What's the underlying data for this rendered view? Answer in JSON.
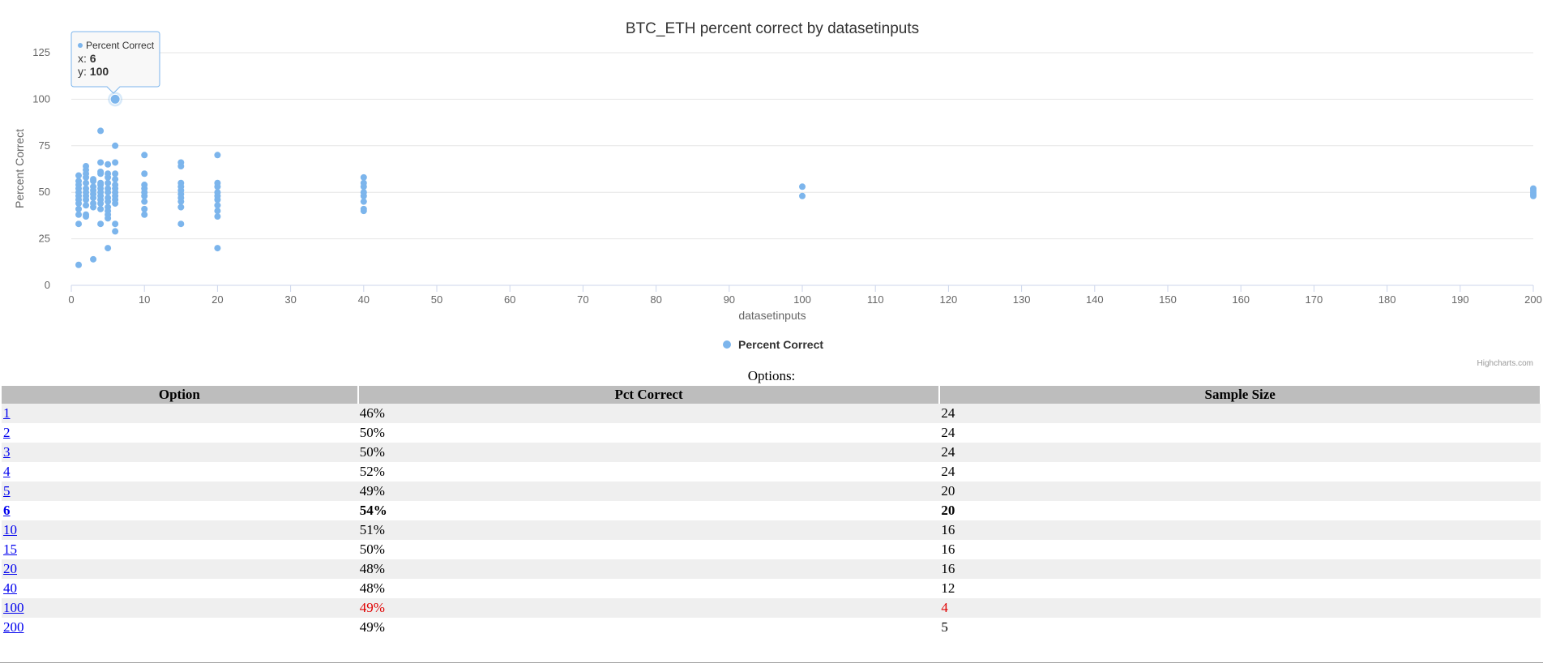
{
  "chart_data": {
    "type": "scatter",
    "title": "BTC_ETH percent correct by datasetinputs",
    "xlabel": "datasetinputs",
    "ylabel": "Percent Correct",
    "xlim": [
      0,
      200
    ],
    "ylim": [
      0,
      125
    ],
    "x_ticks": [
      0,
      10,
      20,
      30,
      40,
      50,
      60,
      70,
      80,
      90,
      100,
      110,
      120,
      130,
      140,
      150,
      160,
      170,
      180,
      190,
      200
    ],
    "y_ticks": [
      0,
      25,
      50,
      75,
      100,
      125
    ],
    "grid": "horizontal",
    "legend_position": "bottom-center",
    "series_color": "#7cb5ec",
    "series": [
      {
        "name": "Percent Correct",
        "points": [
          [
            1,
            11
          ],
          [
            1,
            33
          ],
          [
            1,
            38
          ],
          [
            1,
            41
          ],
          [
            1,
            44
          ],
          [
            1,
            46
          ],
          [
            1,
            48
          ],
          [
            1,
            50
          ],
          [
            1,
            52
          ],
          [
            1,
            54
          ],
          [
            1,
            56
          ],
          [
            1,
            59
          ],
          [
            2,
            37
          ],
          [
            2,
            38
          ],
          [
            2,
            43
          ],
          [
            2,
            46
          ],
          [
            2,
            48
          ],
          [
            2,
            50
          ],
          [
            2,
            52
          ],
          [
            2,
            55
          ],
          [
            2,
            58
          ],
          [
            2,
            60
          ],
          [
            2,
            62
          ],
          [
            2,
            64
          ],
          [
            3,
            14
          ],
          [
            3,
            42
          ],
          [
            3,
            44
          ],
          [
            3,
            47
          ],
          [
            3,
            49
          ],
          [
            3,
            51
          ],
          [
            3,
            53
          ],
          [
            3,
            56
          ],
          [
            3,
            57
          ],
          [
            4,
            33
          ],
          [
            4,
            41
          ],
          [
            4,
            44
          ],
          [
            4,
            46
          ],
          [
            4,
            48
          ],
          [
            4,
            50
          ],
          [
            4,
            52
          ],
          [
            4,
            54
          ],
          [
            4,
            55
          ],
          [
            4,
            60
          ],
          [
            4,
            61
          ],
          [
            4,
            66
          ],
          [
            4,
            83
          ],
          [
            5,
            20
          ],
          [
            5,
            36
          ],
          [
            5,
            38
          ],
          [
            5,
            40
          ],
          [
            5,
            42
          ],
          [
            5,
            45
          ],
          [
            5,
            47
          ],
          [
            5,
            50
          ],
          [
            5,
            52
          ],
          [
            5,
            55
          ],
          [
            5,
            58
          ],
          [
            5,
            60
          ],
          [
            5,
            65
          ],
          [
            6,
            29
          ],
          [
            6,
            33
          ],
          [
            6,
            44
          ],
          [
            6,
            46
          ],
          [
            6,
            48
          ],
          [
            6,
            50
          ],
          [
            6,
            52
          ],
          [
            6,
            54
          ],
          [
            6,
            57
          ],
          [
            6,
            60
          ],
          [
            6,
            66
          ],
          [
            6,
            75
          ],
          [
            6,
            100
          ],
          [
            10,
            38
          ],
          [
            10,
            41
          ],
          [
            10,
            45
          ],
          [
            10,
            48
          ],
          [
            10,
            50
          ],
          [
            10,
            52
          ],
          [
            10,
            54
          ],
          [
            10,
            60
          ],
          [
            10,
            70
          ],
          [
            15,
            33
          ],
          [
            15,
            42
          ],
          [
            15,
            45
          ],
          [
            15,
            47
          ],
          [
            15,
            49
          ],
          [
            15,
            51
          ],
          [
            15,
            53
          ],
          [
            15,
            55
          ],
          [
            15,
            64
          ],
          [
            15,
            66
          ],
          [
            20,
            20
          ],
          [
            20,
            37
          ],
          [
            20,
            40
          ],
          [
            20,
            43
          ],
          [
            20,
            46
          ],
          [
            20,
            48
          ],
          [
            20,
            50
          ],
          [
            20,
            53
          ],
          [
            20,
            55
          ],
          [
            20,
            70
          ],
          [
            40,
            40
          ],
          [
            40,
            41
          ],
          [
            40,
            45
          ],
          [
            40,
            48
          ],
          [
            40,
            50
          ],
          [
            40,
            53
          ],
          [
            40,
            55
          ],
          [
            40,
            58
          ],
          [
            100,
            48
          ],
          [
            100,
            53
          ],
          [
            200,
            48
          ],
          [
            200,
            49
          ],
          [
            200,
            50
          ],
          [
            200,
            51
          ],
          [
            200,
            52
          ]
        ]
      }
    ],
    "tooltip": {
      "series": "Percent Correct",
      "x_label": "x: ",
      "x_value": "6",
      "y_label": "y: ",
      "y_value": "100"
    },
    "credits": "Highcharts.com"
  },
  "options_caption": "Options:",
  "table": {
    "headers": [
      "Option",
      "Pct Correct",
      "Sample Size"
    ],
    "rows": [
      {
        "option": "1",
        "pct": "46%",
        "size": "24",
        "style": "normal"
      },
      {
        "option": "2",
        "pct": "50%",
        "size": "24",
        "style": "normal"
      },
      {
        "option": "3",
        "pct": "50%",
        "size": "24",
        "style": "normal"
      },
      {
        "option": "4",
        "pct": "52%",
        "size": "24",
        "style": "normal"
      },
      {
        "option": "5",
        "pct": "49%",
        "size": "20",
        "style": "normal"
      },
      {
        "option": "6",
        "pct": "54%",
        "size": "20",
        "style": "bold"
      },
      {
        "option": "10",
        "pct": "51%",
        "size": "16",
        "style": "normal"
      },
      {
        "option": "15",
        "pct": "50%",
        "size": "16",
        "style": "normal"
      },
      {
        "option": "20",
        "pct": "48%",
        "size": "16",
        "style": "normal"
      },
      {
        "option": "40",
        "pct": "48%",
        "size": "12",
        "style": "normal"
      },
      {
        "option": "100",
        "pct": "49%",
        "size": "4",
        "style": "red"
      },
      {
        "option": "200",
        "pct": "49%",
        "size": "5",
        "style": "normal"
      }
    ]
  }
}
